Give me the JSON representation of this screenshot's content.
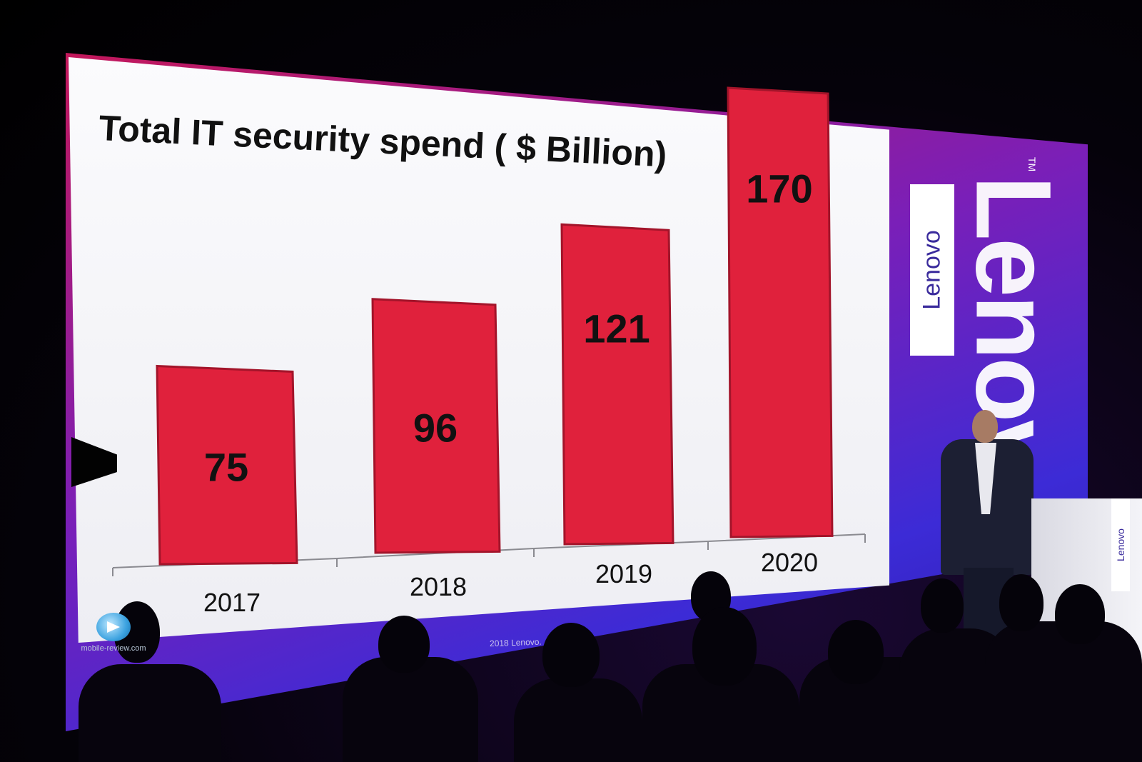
{
  "slide": {
    "title": "Total IT security spend ( $ Billion)",
    "copyright": "2018 Lenovo. … erved."
  },
  "branding": {
    "badge_text": "Lenovo",
    "big_text": "Lenovo",
    "trademark": "TM",
    "podium_text": "Lenovo"
  },
  "watermark": {
    "text": "mobile-review.com"
  },
  "colors": {
    "bar": "#e0213c",
    "bar_outline": "#a3142a",
    "axis": "#8a8a90",
    "label": "#111111"
  },
  "chart_data": {
    "type": "bar",
    "title": "Total IT security spend ( $ Billion)",
    "categories": [
      "2017",
      "2018",
      "2019",
      "2020"
    ],
    "values": [
      75,
      96,
      121,
      170
    ],
    "data_labels": [
      "75",
      "96",
      "121",
      "170"
    ],
    "xlabel": "",
    "ylabel": "",
    "ylim": [
      0,
      180
    ],
    "grid": false,
    "legend": "none"
  }
}
